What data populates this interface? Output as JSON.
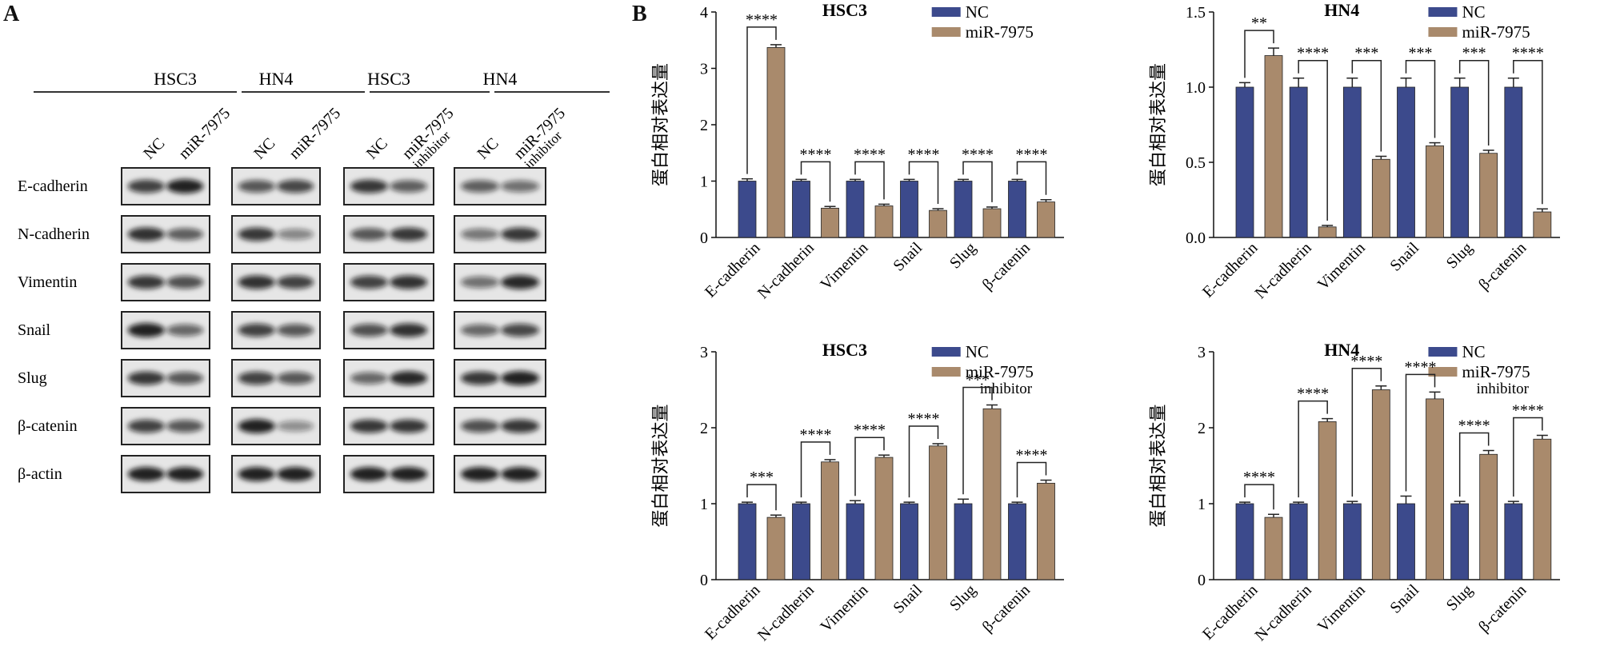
{
  "panel_a": {
    "letter": "A",
    "groups": [
      {
        "cell": "HSC3",
        "lanes": [
          "NC",
          "miR-7975"
        ]
      },
      {
        "cell": "HN4",
        "lanes": [
          "NC",
          "miR-7975"
        ]
      },
      {
        "cell": "HSC3",
        "lanes": [
          "NC",
          "miR-7975 inhibitor"
        ]
      },
      {
        "cell": "HN4",
        "lanes": [
          "NC",
          "miR-7975 inhibitor"
        ]
      }
    ],
    "proteins": [
      "E-cadherin",
      "N-cadherin",
      "Vimentin",
      "Snail",
      "Slug",
      "β-catenin",
      "β-actin"
    ]
  },
  "panel_b": {
    "letter": "B"
  },
  "chart_data": [
    {
      "type": "bar",
      "title": "HSC3",
      "ylabel": "蛋白相对表达量",
      "categories": [
        "E-cadherin",
        "N-cadherin",
        "Vimentin",
        "Snail",
        "Slug",
        "β-catenin"
      ],
      "series": [
        {
          "name": "NC",
          "values": [
            1.0,
            1.0,
            1.0,
            1.0,
            1.0,
            1.0
          ],
          "color": "#3c4a8c"
        },
        {
          "name": "miR-7975",
          "values": [
            3.37,
            0.52,
            0.56,
            0.48,
            0.51,
            0.63
          ],
          "color": "#a98a6c"
        }
      ],
      "significance": [
        "****",
        "****",
        "****",
        "****",
        "****",
        "****"
      ],
      "ylim": [
        0,
        4
      ],
      "yticks": [
        "0",
        "1",
        "2",
        "3",
        "4"
      ],
      "legend": "top-right"
    },
    {
      "type": "bar",
      "title": "HN4",
      "ylabel": "蛋白相对表达量",
      "categories": [
        "E-cadherin",
        "N-cadherin",
        "Vimentin",
        "Snail",
        "Slug",
        "β-catenin"
      ],
      "series": [
        {
          "name": "NC",
          "values": [
            1.0,
            1.0,
            1.0,
            1.0,
            1.0,
            1.0
          ],
          "color": "#3c4a8c"
        },
        {
          "name": "miR-7975",
          "values": [
            1.21,
            0.07,
            0.52,
            0.61,
            0.56,
            0.17
          ],
          "color": "#a98a6c"
        }
      ],
      "significance": [
        "**",
        "****",
        "***",
        "***",
        "***",
        "****"
      ],
      "ylim": [
        0,
        1.5
      ],
      "yticks": [
        "0.0",
        "0.5",
        "1.0",
        "1.5"
      ],
      "legend": "top-right"
    },
    {
      "type": "bar",
      "title": "HSC3",
      "ylabel": "蛋白相对表达量",
      "categories": [
        "E-cadherin",
        "N-cadherin",
        "Vimentin",
        "Snail",
        "Slug",
        "β-catenin"
      ],
      "series": [
        {
          "name": "NC",
          "values": [
            1.0,
            1.0,
            1.0,
            1.0,
            1.0,
            1.0
          ],
          "color": "#3c4a8c"
        },
        {
          "name": "miR-7975 inhibitor",
          "values": [
            0.82,
            1.55,
            1.61,
            1.76,
            2.25,
            1.27
          ],
          "color": "#a98a6c"
        }
      ],
      "significance": [
        "***",
        "****",
        "****",
        "****",
        "***",
        "****"
      ],
      "ylim": [
        0,
        3
      ],
      "yticks": [
        "0",
        "1",
        "2",
        "3"
      ],
      "legend": "top-right"
    },
    {
      "type": "bar",
      "title": "HN4",
      "ylabel": "蛋白相对表达量",
      "categories": [
        "E-cadherin",
        "N-cadherin",
        "Vimentin",
        "Snail",
        "Slug",
        "β-catenin"
      ],
      "series": [
        {
          "name": "NC",
          "values": [
            1.0,
            1.0,
            1.0,
            1.0,
            1.0,
            1.0
          ],
          "color": "#3c4a8c"
        },
        {
          "name": "miR-7975 inhibitor",
          "values": [
            0.82,
            2.08,
            2.5,
            2.38,
            1.65,
            1.85
          ],
          "color": "#a98a6c"
        }
      ],
      "significance": [
        "****",
        "****",
        "****",
        "****",
        "****",
        "****"
      ],
      "ylim": [
        0,
        3
      ],
      "yticks": [
        "0",
        "1",
        "2",
        "3"
      ],
      "legend": "top-right"
    }
  ]
}
